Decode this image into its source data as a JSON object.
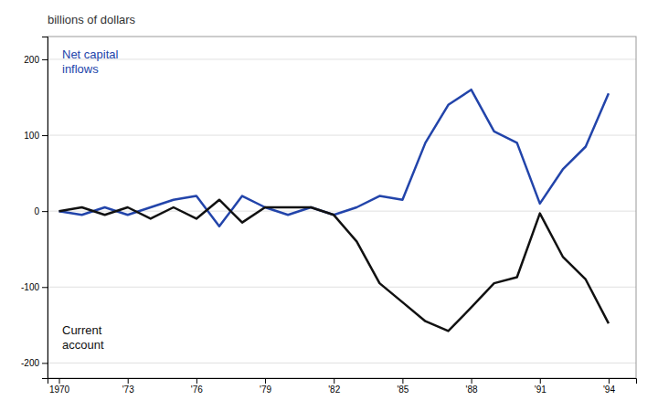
{
  "chart_data": {
    "type": "line",
    "title": "billions of dollars",
    "x": [
      1970,
      1971,
      1972,
      1973,
      1974,
      1975,
      1976,
      1977,
      1978,
      1979,
      1980,
      1981,
      1982,
      1983,
      1984,
      1985,
      1986,
      1987,
      1988,
      1989,
      1990,
      1991,
      1992,
      1993,
      1994
    ],
    "series": [
      {
        "name": "Net capital\ninflows",
        "color": "#2244aa",
        "values": [
          0,
          -5,
          5,
          -5,
          5,
          15,
          20,
          -20,
          20,
          5,
          -5,
          5,
          -5,
          5,
          20,
          15,
          90,
          140,
          160,
          105,
          90,
          10,
          55,
          85,
          155
        ]
      },
      {
        "name": "Current\naccount",
        "color": "#111111",
        "values": [
          0,
          5,
          -5,
          5,
          -10,
          5,
          -10,
          15,
          -15,
          5,
          5,
          5,
          -5,
          -40,
          -95,
          -120,
          -145,
          -158,
          -127,
          -95,
          -87,
          -3,
          -60,
          -90,
          -148
        ]
      }
    ],
    "xlim": [
      1969.5,
      1995.2
    ],
    "xticks": [
      1970,
      {
        "value": 1973,
        "label": "'73"
      },
      {
        "value": 1976,
        "label": "'76"
      },
      {
        "value": 1979,
        "label": "'79"
      },
      {
        "value": 1982,
        "label": "'82"
      },
      {
        "value": 1985,
        "label": "'85"
      },
      {
        "value": 1988,
        "label": "'88"
      },
      {
        "value": 1991,
        "label": "'91"
      },
      {
        "value": 1994,
        "label": "'94"
      }
    ],
    "ylim": [
      -220,
      230
    ],
    "yticks": [
      -200,
      -100,
      0,
      100,
      200
    ],
    "grid": true
  }
}
